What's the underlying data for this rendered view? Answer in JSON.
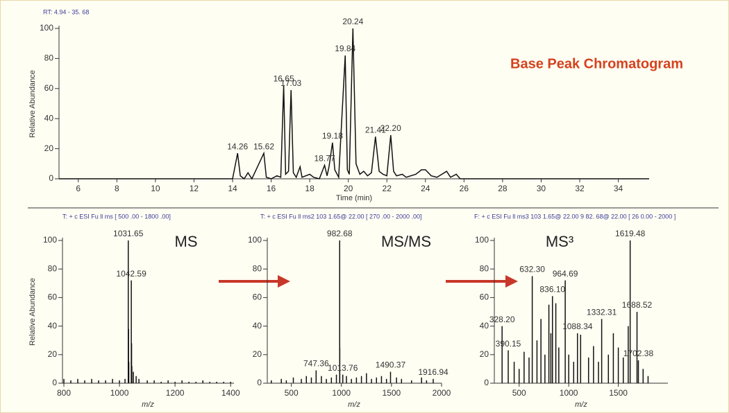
{
  "chart_data": [
    {
      "type": "line",
      "header": "RT: 4.94    - 35. 68",
      "title": "Base Peak Chromatogram",
      "x_label": "Time (min)",
      "y_label": "Relative Abundance",
      "x": [
        5.0,
        14.0,
        14.26,
        14.4,
        14.6,
        14.8,
        15.0,
        15.62,
        15.75,
        16.0,
        16.3,
        16.5,
        16.65,
        16.75,
        16.9,
        17.03,
        17.15,
        17.3,
        17.5,
        17.6,
        18.0,
        18.2,
        18.5,
        18.77,
        18.9,
        19.0,
        19.18,
        19.3,
        19.5,
        19.84,
        19.95,
        20.05,
        20.24,
        20.4,
        20.6,
        20.8,
        21.0,
        21.2,
        21.41,
        21.6,
        21.8,
        22.0,
        22.2,
        22.35,
        22.5,
        22.8,
        23.0,
        23.5,
        23.8,
        24.0,
        24.3,
        24.6,
        25.1,
        25.3,
        25.6,
        25.8,
        35.6
      ],
      "values": [
        0,
        0,
        17,
        2,
        0,
        4,
        0,
        17,
        1,
        0,
        2,
        1,
        62,
        3,
        5,
        59,
        4,
        1,
        8,
        1,
        3,
        1,
        0,
        9,
        2,
        8,
        24,
        6,
        1,
        82,
        6,
        3,
        100,
        10,
        3,
        5,
        2,
        4,
        28,
        5,
        3,
        2,
        29,
        5,
        2,
        3,
        1,
        3,
        6,
        6,
        2,
        1,
        5,
        1,
        3,
        0,
        0
      ],
      "annotations": [
        {
          "text": "14.26",
          "x": 14.26,
          "y": 17
        },
        {
          "text": "15.62",
          "x": 15.62,
          "y": 17
        },
        {
          "text": "16.65",
          "x": 16.65,
          "y": 62
        },
        {
          "text": "17.03",
          "x": 17.03,
          "y": 59
        },
        {
          "text": "18.77",
          "x": 18.77,
          "y": 9
        },
        {
          "text": "19.18",
          "x": 19.18,
          "y": 24
        },
        {
          "text": "19.84",
          "x": 19.84,
          "y": 82
        },
        {
          "text": "20.24",
          "x": 20.24,
          "y": 100
        },
        {
          "text": "21.41",
          "x": 21.41,
          "y": 28
        },
        {
          "text": "22.20",
          "x": 22.2,
          "y": 29
        }
      ],
      "xlim": [
        5.0,
        35.6
      ],
      "ylim": [
        0,
        100
      ],
      "xticks": [
        6,
        8,
        10,
        12,
        14,
        16,
        18,
        20,
        22,
        24,
        26,
        28,
        30,
        32,
        34
      ],
      "yticks": [
        0,
        20,
        40,
        60,
        80,
        100
      ],
      "color": "#111111"
    },
    {
      "type": "stem",
      "header": "T: + c ESI  Fu ll ms  [ 500 .00 - 1800 .00]",
      "title": "MS",
      "x_label": "m/z",
      "y_label": "Relative Abundance",
      "x": [
        800,
        825,
        850,
        875,
        900,
        925,
        950,
        975,
        1000,
        1020,
        1031.65,
        1032.6,
        1033.6,
        1042.59,
        1043.6,
        1044.6,
        1050,
        1060,
        1070,
        1100,
        1125,
        1150,
        1175,
        1200,
        1225,
        1250,
        1275,
        1300,
        1325,
        1350,
        1375,
        1400
      ],
      "values": [
        3,
        2,
        3,
        2,
        3,
        2,
        2,
        3,
        2,
        3,
        100,
        38,
        15,
        72,
        28,
        12,
        8,
        5,
        3,
        2,
        2,
        1,
        2,
        1,
        2,
        1,
        1,
        2,
        1,
        1,
        1,
        1
      ],
      "annotations": [
        {
          "text": "1031.65",
          "x": 1031.65,
          "y": 100
        },
        {
          "text": "1042.59",
          "x": 1042.59,
          "y": 72
        }
      ],
      "xlim": [
        795,
        1412
      ],
      "ylim": [
        0,
        100
      ],
      "xticks": [
        800,
        1000,
        1200,
        1400
      ],
      "yticks": [
        0,
        20,
        40,
        60,
        80,
        100
      ],
      "color": "#111111"
    },
    {
      "type": "stem",
      "header": "T: + c ESI  Fu ll ms2  103 1.65@ 22.00 [ 270 .00 - 2000 .00]",
      "title": "MS/MS",
      "x_label": "m/z",
      "x": [
        300,
        400,
        450,
        520,
        600,
        650,
        700,
        747.36,
        800,
        850,
        900,
        950,
        982.68,
        983.7,
        1013.76,
        1050,
        1100,
        1150,
        1200,
        1250,
        1300,
        1350,
        1400,
        1450,
        1490.37,
        1550,
        1600,
        1700,
        1800,
        1850,
        1916.94
      ],
      "values": [
        2,
        3,
        2,
        4,
        3,
        5,
        4,
        9,
        5,
        3,
        4,
        6,
        100,
        25,
        6,
        5,
        3,
        4,
        5,
        7,
        3,
        4,
        5,
        3,
        8,
        4,
        3,
        2,
        4,
        2,
        3
      ],
      "annotations": [
        {
          "text": "747.36",
          "x": 747.36,
          "y": 9
        },
        {
          "text": "982.68",
          "x": 982.68,
          "y": 100
        },
        {
          "text": "1013.76",
          "x": 1013.76,
          "y": 6
        },
        {
          "text": "1490.37",
          "x": 1490.37,
          "y": 8
        },
        {
          "text": "1916.94",
          "x": 1916.94,
          "y": 3
        }
      ],
      "xlim": [
        260,
        2000
      ],
      "ylim": [
        0,
        100
      ],
      "xticks": [
        500,
        1000,
        1500,
        2000
      ],
      "yticks": [
        0,
        20,
        40,
        60,
        80,
        100
      ],
      "color": "#111111"
    },
    {
      "type": "stem",
      "header": "F:  + c ESI  Fu ll ms3  103 1.65@ 22.00 9 82. 68@ 22.00 [ 26 0.00   - 2000 ]",
      "title": "MS³",
      "x_label": "m/z",
      "x": [
        328.2,
        390.15,
        450,
        500,
        550,
        600,
        632.3,
        680,
        720,
        760,
        800,
        820,
        836.1,
        870,
        900,
        964.69,
        1000,
        1050,
        1088.34,
        1120,
        1200,
        1250,
        1300,
        1332.31,
        1400,
        1450,
        1500,
        1550,
        1600,
        1619.48,
        1688.52,
        1702.38,
        1750,
        1800
      ],
      "values": [
        40,
        23,
        15,
        10,
        22,
        18,
        75,
        30,
        45,
        20,
        55,
        35,
        61,
        56,
        25,
        72,
        20,
        15,
        35,
        34,
        18,
        26,
        15,
        45,
        20,
        35,
        25,
        18,
        40,
        100,
        50,
        16,
        10,
        5
      ],
      "annotations": [
        {
          "text": "328.20",
          "x": 328.2,
          "y": 40
        },
        {
          "text": "390.15",
          "x": 390.15,
          "y": 23
        },
        {
          "text": "632.30",
          "x": 632.3,
          "y": 75
        },
        {
          "text": "836.10",
          "x": 836.1,
          "y": 61
        },
        {
          "text": "964.69",
          "x": 964.69,
          "y": 72
        },
        {
          "text": "1088.34",
          "x": 1088.34,
          "y": 35
        },
        {
          "text": "1332.31",
          "x": 1332.31,
          "y": 45
        },
        {
          "text": "1619.48",
          "x": 1619.48,
          "y": 100
        },
        {
          "text": "1688.52",
          "x": 1688.52,
          "y": 50
        },
        {
          "text": "1702.38",
          "x": 1702.38,
          "y": 16
        }
      ],
      "xlim": [
        250,
        2000
      ],
      "ylim": [
        0,
        100
      ],
      "xticks": [
        500,
        1000,
        1500
      ],
      "yticks": [
        0,
        20,
        40,
        60,
        80,
        100
      ],
      "color": "#111111"
    }
  ]
}
